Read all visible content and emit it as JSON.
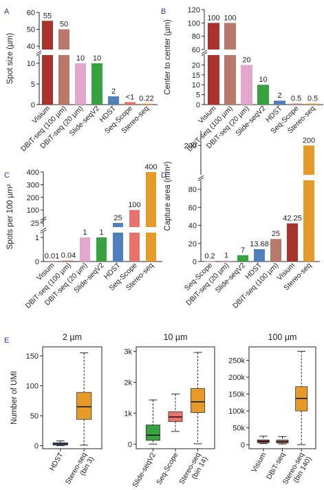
{
  "colors": {
    "visium": "#a8322c",
    "dbit100": "#b8786a",
    "dbit20": "#e3a6cc",
    "slideseq": "#36a240",
    "hdst": "#4f7fbd",
    "seqscope": "#e8736c",
    "stereo": "#e69b28",
    "panel_label": "#4b2aa3",
    "median": "#1a1a1a"
  },
  "chart_data": [
    {
      "panel": "A",
      "type": "bar",
      "ylabel": "Spot size (µm)",
      "categories": [
        "Visium",
        "DBiT-seq (100 µm)",
        "DBiT-seq (20 µm)",
        "Slide-seqV2",
        "HDST",
        "Seq-Scope",
        "Stereo-seq"
      ],
      "values": [
        55,
        50,
        10,
        10,
        2,
        0.6,
        0.22
      ],
      "value_labels": [
        "55",
        "50",
        "10",
        "10",
        "2",
        "<1",
        "0.22"
      ],
      "colors": [
        "#a8322c",
        "#b8786a",
        "#e3a6cc",
        "#36a240",
        "#4f7fbd",
        "#e8736c",
        "#e69b28"
      ],
      "axis_break": {
        "lower": [
          0,
          12
        ],
        "upper": [
          38,
          60
        ]
      },
      "ticks_lower": [
        "0",
        "5",
        "10"
      ],
      "ticks_upper": [
        "40",
        "50",
        "60"
      ]
    },
    {
      "panel": "B",
      "type": "bar",
      "ylabel": "Center to center (µm)",
      "categories": [
        "Visium",
        "DBiT-seq (100 µm)",
        "DBiT-seq (20 µm)",
        "Slide-seqV2",
        "HDST",
        "Seq-Scope",
        "Stereo-seq"
      ],
      "values": [
        100,
        100,
        20,
        10,
        2,
        0.5,
        0.5
      ],
      "value_labels": [
        "100",
        "100",
        "20",
        "10",
        "2",
        "0.5",
        "0.5"
      ],
      "colors": [
        "#a8322c",
        "#b8786a",
        "#e3a6cc",
        "#36a240",
        "#4f7fbd",
        "#e8736c",
        "#e69b28"
      ],
      "axis_break": {
        "lower": [
          0,
          25
        ],
        "upper": [
          60,
          120
        ]
      },
      "ticks_lower": [
        "0",
        "5",
        "10",
        "15",
        "20"
      ],
      "ticks_upper": [
        "60",
        "80",
        "100",
        "120"
      ]
    },
    {
      "panel": "C",
      "type": "bar",
      "ylabel": "Spots per 100 µm²",
      "categories": [
        "Visium",
        "DBiT-seq (100 µm)",
        "DBiT-seq (20 µm)",
        "Slide-seqV2",
        "HDST",
        "Seq-Scope",
        "Stereo-seq"
      ],
      "values": [
        0.01,
        0.04,
        1,
        1,
        25,
        100,
        400
      ],
      "value_labels": [
        "0.01",
        "0.04",
        "1",
        "1",
        "25",
        "100",
        "400"
      ],
      "colors": [
        "#a8322c",
        "#b8786a",
        "#e3a6cc",
        "#36a240",
        "#4f7fbd",
        "#e8736c",
        "#e69b28"
      ],
      "axis_break": {
        "lower": [
          0,
          1.2
        ],
        "middle": [
          20,
          30
        ],
        "upper": [
          30,
          400
        ]
      },
      "ticks_lower": [
        "0",
        "1"
      ],
      "ticks_middle": [
        "25"
      ],
      "ticks_upper": [
        "100",
        "200",
        "300",
        "400"
      ]
    },
    {
      "panel": "D",
      "type": "bar",
      "ylabel": "Capture area (mm²)",
      "categories": [
        "Seq-Scope",
        "DBiT-seq (20 µm)",
        "Slide-seqV2",
        "HDST",
        "DBiT-seq (100 µm)",
        "Visium",
        "Stereo-seq"
      ],
      "values": [
        0.2,
        1,
        7,
        13.68,
        25,
        42.25,
        200
      ],
      "value_labels": [
        "0.2",
        "1",
        "7",
        "13.68",
        "25",
        "42.25",
        "200"
      ],
      "colors": [
        "#e8736c",
        "#e3a6cc",
        "#36a240",
        "#4f7fbd",
        "#b8786a",
        "#a8322c",
        "#e69b28"
      ],
      "axis_break": {
        "lower": [
          0,
          90
        ],
        "upper": [
          180,
          210
        ]
      },
      "ticks_lower": [
        "0",
        "20",
        "40",
        "60",
        "80"
      ],
      "ticks_upper": [
        "200"
      ]
    },
    {
      "panel": "E",
      "type": "box",
      "title": "2 µm",
      "ylabel": "Number of UMI",
      "ylim": [
        -5,
        165
      ],
      "ticks": [
        "0",
        "50",
        "100",
        "150"
      ],
      "categories": [
        "HDST",
        "Stereo-seq\n(bin 3)"
      ],
      "boxes": [
        {
          "min": 0,
          "q1": 1,
          "median": 3,
          "q3": 5,
          "max": 8,
          "color": "#4f7fbd"
        },
        {
          "min": 1,
          "q1": 44,
          "median": 65,
          "q3": 89,
          "max": 155,
          "color": "#e69b28"
        }
      ]
    },
    {
      "panel": "E",
      "type": "box",
      "title": "10 µm",
      "ylim": [
        -150,
        3150
      ],
      "ticks": [
        "0",
        "1k",
        "2k",
        "3k"
      ],
      "categories": [
        "Slide-seqV2",
        "Seq-Scope",
        "Stereo-seq\n(bin 14)"
      ],
      "boxes": [
        {
          "min": 0,
          "q1": 120,
          "median": 290,
          "q3": 620,
          "max": 1430,
          "color": "#36a240"
        },
        {
          "min": 410,
          "q1": 730,
          "median": 880,
          "q3": 1050,
          "max": 1620,
          "color": "#e8736c"
        },
        {
          "min": 10,
          "q1": 1020,
          "median": 1370,
          "q3": 1800,
          "max": 2970,
          "color": "#e69b28"
        }
      ]
    },
    {
      "panel": "E",
      "type": "box",
      "title": "100 µm",
      "ylim": [
        -12000,
        290000
      ],
      "ticks": [
        "0",
        "50k",
        "100k",
        "150k",
        "200k",
        "250k"
      ],
      "categories": [
        "Visium",
        "DBiT-seq",
        "Stereo-seq\n(bin 140)"
      ],
      "boxes": [
        {
          "min": 3000,
          "q1": 6000,
          "median": 9000,
          "q3": 14000,
          "max": 25000,
          "color": "#a8322c"
        },
        {
          "min": 2000,
          "q1": 5000,
          "median": 9000,
          "q3": 14000,
          "max": 24000,
          "color": "#b8786a"
        },
        {
          "min": 0,
          "q1": 100000,
          "median": 137000,
          "q3": 172000,
          "max": 277000,
          "color": "#e69b28"
        }
      ]
    }
  ]
}
